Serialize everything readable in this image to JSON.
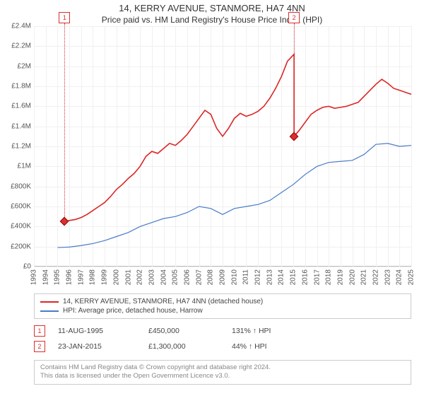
{
  "title": "14, KERRY AVENUE, STANMORE, HA7 4NN",
  "subtitle": "Price paid vs. HM Land Registry's House Price Index (HPI)",
  "chart": {
    "type": "line",
    "x_start": 1993,
    "x_end": 2025,
    "y_min": 0,
    "y_max": 2400000,
    "y_tick_step": 200000,
    "y_tick_labels": [
      "£0",
      "£200K",
      "£400K",
      "£600K",
      "£800K",
      "£1M",
      "£1.2M",
      "£1.4M",
      "£1.6M",
      "£1.8M",
      "£2M",
      "£2.2M",
      "£2.4M"
    ],
    "x_ticks": [
      1993,
      1994,
      1995,
      1996,
      1997,
      1998,
      1999,
      2000,
      2001,
      2002,
      2003,
      2004,
      2005,
      2006,
      2007,
      2008,
      2009,
      2010,
      2011,
      2012,
      2013,
      2014,
      2015,
      2016,
      2017,
      2018,
      2019,
      2020,
      2021,
      2022,
      2023,
      2024,
      2025
    ],
    "background_color": "#ffffff",
    "grid_color": "#f0f0f0",
    "series": [
      {
        "name": "14, KERRY AVENUE, STANMORE, HA7 4NN (detached house)",
        "color": "#dc2626",
        "width": 1.6,
        "data": [
          [
            1995.6,
            450000
          ],
          [
            1996,
            460000
          ],
          [
            1996.5,
            470000
          ],
          [
            1997,
            490000
          ],
          [
            1997.5,
            520000
          ],
          [
            1998,
            560000
          ],
          [
            1998.5,
            600000
          ],
          [
            1999,
            640000
          ],
          [
            1999.5,
            700000
          ],
          [
            2000,
            770000
          ],
          [
            2000.5,
            820000
          ],
          [
            2001,
            880000
          ],
          [
            2001.5,
            930000
          ],
          [
            2002,
            1000000
          ],
          [
            2002.5,
            1100000
          ],
          [
            2003,
            1150000
          ],
          [
            2003.5,
            1130000
          ],
          [
            2004,
            1180000
          ],
          [
            2004.5,
            1230000
          ],
          [
            2005,
            1210000
          ],
          [
            2005.5,
            1260000
          ],
          [
            2006,
            1320000
          ],
          [
            2006.5,
            1400000
          ],
          [
            2007,
            1480000
          ],
          [
            2007.5,
            1560000
          ],
          [
            2008,
            1520000
          ],
          [
            2008.5,
            1380000
          ],
          [
            2009,
            1300000
          ],
          [
            2009.5,
            1380000
          ],
          [
            2010,
            1480000
          ],
          [
            2010.5,
            1530000
          ],
          [
            2011,
            1500000
          ],
          [
            2011.5,
            1520000
          ],
          [
            2012,
            1550000
          ],
          [
            2012.5,
            1600000
          ],
          [
            2013,
            1680000
          ],
          [
            2013.5,
            1780000
          ],
          [
            2014,
            1900000
          ],
          [
            2014.5,
            2050000
          ],
          [
            2015.06,
            2120000
          ],
          [
            2015.061,
            1300000
          ],
          [
            2015.5,
            1360000
          ],
          [
            2016,
            1440000
          ],
          [
            2016.5,
            1520000
          ],
          [
            2017,
            1560000
          ],
          [
            2017.5,
            1590000
          ],
          [
            2018,
            1600000
          ],
          [
            2018.5,
            1580000
          ],
          [
            2019,
            1590000
          ],
          [
            2019.5,
            1600000
          ],
          [
            2020,
            1620000
          ],
          [
            2020.5,
            1640000
          ],
          [
            2021,
            1700000
          ],
          [
            2021.5,
            1760000
          ],
          [
            2022,
            1820000
          ],
          [
            2022.5,
            1870000
          ],
          [
            2023,
            1830000
          ],
          [
            2023.5,
            1780000
          ],
          [
            2024,
            1760000
          ],
          [
            2024.5,
            1740000
          ],
          [
            2025,
            1720000
          ]
        ]
      },
      {
        "name": "HPI: Average price, detached house, Harrow",
        "color": "#4a7bc8",
        "width": 1.2,
        "data": [
          [
            1995,
            190000
          ],
          [
            1996,
            195000
          ],
          [
            1997,
            210000
          ],
          [
            1998,
            230000
          ],
          [
            1999,
            260000
          ],
          [
            2000,
            300000
          ],
          [
            2001,
            340000
          ],
          [
            2002,
            400000
          ],
          [
            2003,
            440000
          ],
          [
            2004,
            480000
          ],
          [
            2005,
            500000
          ],
          [
            2006,
            540000
          ],
          [
            2007,
            600000
          ],
          [
            2008,
            580000
          ],
          [
            2009,
            520000
          ],
          [
            2010,
            580000
          ],
          [
            2011,
            600000
          ],
          [
            2012,
            620000
          ],
          [
            2013,
            660000
          ],
          [
            2014,
            740000
          ],
          [
            2015,
            820000
          ],
          [
            2016,
            920000
          ],
          [
            2017,
            1000000
          ],
          [
            2018,
            1040000
          ],
          [
            2019,
            1050000
          ],
          [
            2020,
            1060000
          ],
          [
            2021,
            1120000
          ],
          [
            2022,
            1220000
          ],
          [
            2023,
            1230000
          ],
          [
            2024,
            1200000
          ],
          [
            2025,
            1210000
          ]
        ]
      }
    ],
    "markers": [
      {
        "n": "1",
        "x": 1995.6,
        "y": 450000
      },
      {
        "n": "2",
        "x": 2015.06,
        "y": 1300000
      }
    ]
  },
  "legend": [
    {
      "color": "#dc2626",
      "label": "14, KERRY AVENUE, STANMORE, HA7 4NN (detached house)"
    },
    {
      "color": "#4a7bc8",
      "label": "HPI: Average price, detached house, Harrow"
    }
  ],
  "transactions": [
    {
      "n": "1",
      "date": "11-AUG-1995",
      "price": "£450,000",
      "hpi": "131% ↑ HPI"
    },
    {
      "n": "2",
      "date": "23-JAN-2015",
      "price": "£1,300,000",
      "hpi": "44% ↑ HPI"
    }
  ],
  "footer_line1": "Contains HM Land Registry data © Crown copyright and database right 2024.",
  "footer_line2": "This data is licensed under the Open Government Licence v3.0."
}
